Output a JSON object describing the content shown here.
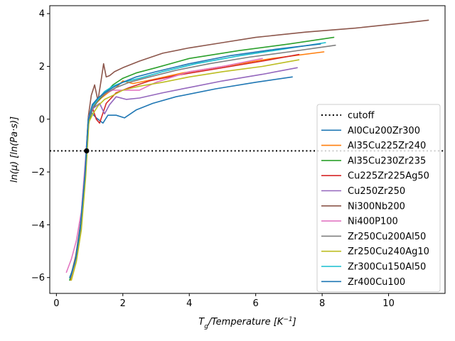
{
  "chart_data": {
    "type": "line",
    "xlabel": "T_g/Temperature [K^{-1}]",
    "ylabel": "ln(μ) [ln(Pa·s)]",
    "xlim": [
      -0.2,
      11.7
    ],
    "ylim": [
      -6.6,
      4.3
    ],
    "x_ticks": [
      0,
      2,
      4,
      6,
      8,
      10
    ],
    "y_ticks": [
      -6,
      -4,
      -2,
      0,
      2,
      4
    ],
    "grid": false,
    "legend_position": "right",
    "cutoff": {
      "name": "cutoff",
      "y": -1.2,
      "style": "dotted",
      "color": "#000000"
    },
    "marker": {
      "x": 0.91,
      "y": -1.2,
      "color": "#000000"
    },
    "series": [
      {
        "name": "Al0Cu200Zr300",
        "color": "#1f77b4",
        "x": [
          0.4,
          0.55,
          0.7,
          0.85,
          0.95,
          1.05,
          1.2,
          1.4,
          1.55,
          1.8,
          2.05,
          2.4,
          2.9,
          3.6,
          4.8,
          6.0,
          7.1
        ],
        "y": [
          -6.0,
          -5.5,
          -4.3,
          -2.4,
          -0.3,
          0.25,
          0.05,
          -0.15,
          0.15,
          0.15,
          0.05,
          0.35,
          0.6,
          0.85,
          1.15,
          1.4,
          1.6
        ]
      },
      {
        "name": "Al35Cu225Zr240",
        "color": "#ff7f0e",
        "x": [
          0.42,
          0.58,
          0.72,
          0.85,
          0.95,
          1.05,
          1.2,
          1.35,
          1.55,
          1.8,
          2.0,
          2.3,
          2.9,
          3.8,
          5.0,
          6.5,
          8.05
        ],
        "y": [
          -6.1,
          -5.3,
          -4.2,
          -2.3,
          -0.2,
          0.3,
          0.6,
          0.8,
          1.0,
          1.2,
          1.45,
          1.35,
          1.5,
          1.75,
          2.0,
          2.3,
          2.55
        ]
      },
      {
        "name": "Al35Cu230Zr235",
        "color": "#2ca02c",
        "x": [
          0.4,
          0.55,
          0.72,
          0.87,
          0.97,
          1.1,
          1.25,
          1.45,
          1.7,
          2.0,
          2.4,
          3.0,
          4.0,
          5.5,
          7.0,
          8.35
        ],
        "y": [
          -6.1,
          -5.4,
          -4.3,
          -2.2,
          -0.1,
          0.4,
          0.7,
          0.95,
          1.3,
          1.55,
          1.75,
          1.95,
          2.3,
          2.6,
          2.85,
          3.1
        ]
      },
      {
        "name": "Cu225Zr225Ag50",
        "color": "#d62728",
        "x": [
          0.42,
          0.58,
          0.72,
          0.86,
          0.96,
          1.08,
          1.2,
          1.3,
          1.5,
          1.8,
          2.2,
          2.8,
          3.8,
          5.0,
          6.2,
          7.3
        ],
        "y": [
          -6.0,
          -5.3,
          -4.1,
          -2.1,
          0.0,
          0.45,
          0.0,
          -0.15,
          0.6,
          1.0,
          1.2,
          1.45,
          1.7,
          1.95,
          2.2,
          2.45
        ]
      },
      {
        "name": "Cu250Zr250",
        "color": "#9467bd",
        "x": [
          0.45,
          0.6,
          0.75,
          0.87,
          0.97,
          1.1,
          1.3,
          1.45,
          1.6,
          1.8,
          2.1,
          2.5,
          3.2,
          4.0,
          5.0,
          6.2,
          7.25
        ],
        "y": [
          -5.9,
          -5.2,
          -4.0,
          -2.0,
          0.0,
          0.4,
          0.6,
          0.2,
          0.55,
          0.85,
          0.75,
          0.8,
          1.0,
          1.2,
          1.45,
          1.7,
          1.95
        ]
      },
      {
        "name": "Ni300Nb200",
        "color": "#8c564b",
        "x": [
          0.42,
          0.58,
          0.72,
          0.86,
          0.96,
          1.05,
          1.15,
          1.25,
          1.35,
          1.42,
          1.5,
          1.6,
          1.75,
          2.0,
          2.5,
          3.2,
          4.0,
          5.0,
          6.0,
          7.5,
          9.0,
          10.5,
          11.2
        ],
        "y": [
          -6.0,
          -5.2,
          -4.0,
          -2.0,
          0.1,
          0.9,
          1.3,
          0.7,
          1.5,
          2.1,
          1.6,
          1.65,
          1.8,
          1.95,
          2.2,
          2.5,
          2.7,
          2.9,
          3.1,
          3.3,
          3.45,
          3.65,
          3.75
        ]
      },
      {
        "name": "Ni400P100",
        "color": "#e377c2",
        "x": [
          0.3,
          0.45,
          0.6,
          0.75,
          0.87,
          0.97,
          1.1,
          1.3,
          1.5,
          1.7,
          2.0,
          2.5,
          3.0,
          4.0,
          5.0,
          6.2
        ],
        "y": [
          -5.8,
          -5.3,
          -4.6,
          -3.5,
          -1.6,
          0.1,
          0.5,
          0.8,
          1.0,
          1.1,
          1.1,
          1.1,
          1.4,
          1.8,
          2.0,
          2.3
        ]
      },
      {
        "name": "Zr250Cu200Al50",
        "color": "#7f7f7f",
        "x": [
          0.42,
          0.58,
          0.72,
          0.86,
          0.96,
          1.1,
          1.3,
          1.5,
          1.8,
          2.2,
          2.8,
          3.6,
          4.6,
          5.8,
          7.0,
          8.4
        ],
        "y": [
          -6.0,
          -5.3,
          -4.2,
          -2.1,
          0.0,
          0.45,
          0.8,
          1.0,
          1.2,
          1.4,
          1.6,
          1.85,
          2.1,
          2.35,
          2.55,
          2.8
        ]
      },
      {
        "name": "Zr250Cu240Ag10",
        "color": "#bcbd22",
        "x": [
          0.45,
          0.6,
          0.75,
          0.88,
          0.98,
          1.1,
          1.25,
          1.45,
          1.7,
          2.0,
          2.5,
          3.2,
          4.0,
          5.0,
          6.2,
          7.3
        ],
        "y": [
          -6.1,
          -5.4,
          -4.2,
          -2.2,
          -0.1,
          0.2,
          0.5,
          0.75,
          0.9,
          1.1,
          1.25,
          1.4,
          1.6,
          1.8,
          2.0,
          2.25
        ]
      },
      {
        "name": "Zr300Cu150Al50",
        "color": "#17becf",
        "x": [
          0.42,
          0.58,
          0.72,
          0.86,
          0.96,
          1.08,
          1.25,
          1.45,
          1.7,
          2.0,
          2.5,
          3.2,
          4.2,
          5.5,
          6.8,
          8.1
        ],
        "y": [
          -6.0,
          -5.3,
          -4.1,
          -2.1,
          0.0,
          0.5,
          0.75,
          1.05,
          1.25,
          1.4,
          1.55,
          1.8,
          2.1,
          2.4,
          2.65,
          2.9
        ]
      },
      {
        "name": "Zr400Cu100",
        "color": "#1f77b4",
        "x": [
          0.42,
          0.58,
          0.72,
          0.86,
          0.96,
          1.08,
          1.25,
          1.45,
          1.7,
          2.0,
          2.4,
          3.0,
          4.0,
          5.2,
          6.6,
          7.95
        ],
        "y": [
          -6.0,
          -5.3,
          -4.1,
          -2.1,
          0.0,
          0.55,
          0.8,
          1.0,
          1.2,
          1.4,
          1.6,
          1.8,
          2.1,
          2.4,
          2.65,
          2.85
        ]
      }
    ]
  }
}
